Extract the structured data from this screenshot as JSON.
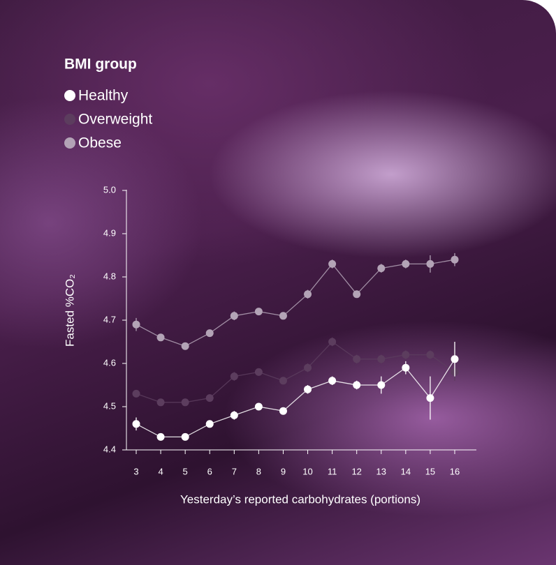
{
  "chart_data": {
    "type": "line",
    "legend_title": "BMI group",
    "ylabel": "Fasted %CO₂",
    "xlabel": "Yesterday’s reported carbohydrates (portions)",
    "x": [
      3,
      4,
      5,
      6,
      7,
      8,
      9,
      10,
      11,
      12,
      13,
      14,
      15,
      16
    ],
    "xlim": [
      3,
      16
    ],
    "xticks": [
      3,
      4,
      5,
      6,
      7,
      8,
      9,
      10,
      11,
      12,
      13,
      14,
      15,
      16
    ],
    "ylim": [
      4.4,
      5.0
    ],
    "yticks": [
      4.4,
      4.5,
      4.6,
      4.7,
      4.8,
      4.9,
      {
        "value": 5.0,
        "label": "5.0"
      }
    ],
    "series": [
      {
        "name": "Healthy",
        "color": "#ffffff",
        "values": [
          4.46,
          4.43,
          4.43,
          4.46,
          4.48,
          4.5,
          4.49,
          4.54,
          4.56,
          4.55,
          4.55,
          4.59,
          4.52,
          4.61
        ],
        "errors": [
          0.015,
          0.005,
          0.005,
          0.005,
          0.01,
          0.005,
          0.005,
          0.01,
          0.01,
          0.01,
          0.02,
          0.015,
          0.05,
          0.04
        ]
      },
      {
        "name": "Overweight",
        "color": "#5c3d5e",
        "values": [
          4.53,
          4.51,
          4.51,
          4.52,
          4.57,
          4.58,
          4.56,
          4.59,
          4.65,
          4.61,
          4.61,
          4.62,
          4.62,
          4.58
        ],
        "errors": [
          0.005,
          0.005,
          0.005,
          0.005,
          0.01,
          0.005,
          0.005,
          0.01,
          0.01,
          0.01,
          0.01,
          0.01,
          0.01,
          0.02
        ]
      },
      {
        "name": "Obese",
        "color": "#b3a3b6",
        "values": [
          4.69,
          4.66,
          4.64,
          4.67,
          4.71,
          4.72,
          4.71,
          4.76,
          4.83,
          4.76,
          4.82,
          4.83,
          4.83,
          4.84
        ],
        "errors": [
          0.015,
          0.005,
          0.005,
          0.005,
          0.01,
          0.005,
          0.005,
          0.01,
          0.01,
          0.005,
          0.01,
          0.01,
          0.02,
          0.015
        ]
      }
    ]
  }
}
